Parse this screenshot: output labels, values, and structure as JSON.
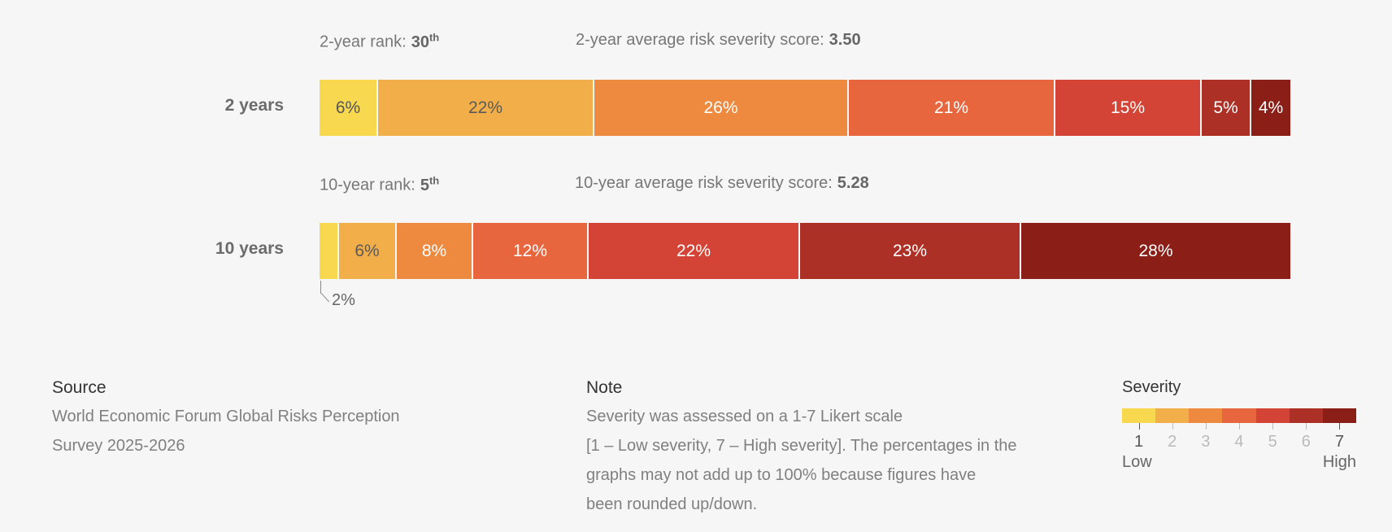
{
  "chart_data": {
    "type": "bar",
    "orientation": "horizontal-stacked",
    "scale_categories": [
      "1",
      "2",
      "3",
      "4",
      "5",
      "6",
      "7"
    ],
    "colors": [
      "#f7d84f",
      "#f2ae48",
      "#ee8a40",
      "#e8663d",
      "#d44436",
      "#ad3027",
      "#8b1e17"
    ],
    "rows": [
      {
        "label": "2 years",
        "rank_label": "2-year rank:",
        "rank_value": "30",
        "rank_suffix": "th",
        "score_label": "2-year average risk severity score:",
        "score_value": "3.50",
        "values": [
          6,
          22,
          26,
          21,
          15,
          5,
          4
        ],
        "value_labels": [
          "6%",
          "22%",
          "26%",
          "21%",
          "15%",
          "5%",
          "4%"
        ]
      },
      {
        "label": "10 years",
        "rank_label": "10-year rank:",
        "rank_value": "5",
        "rank_suffix": "th",
        "score_label": "10-year average risk severity score:",
        "score_value": "5.28",
        "values": [
          2,
          6,
          8,
          12,
          22,
          23,
          28
        ],
        "value_labels": [
          "",
          "6%",
          "8%",
          "12%",
          "22%",
          "23%",
          "28%"
        ],
        "callout": "2%"
      }
    ]
  },
  "footer": {
    "source_title": "Source",
    "source_lines": [
      "World Economic Forum Global Risks Perception",
      "Survey 2025-2026"
    ],
    "note_title": "Note",
    "note_lines": [
      "Severity was assessed on a 1-7 Likert scale",
      "[1 – Low severity, 7 – High severity]. The percentages in the",
      "graphs may not add up to 100% because figures have",
      "been rounded up/down."
    ]
  },
  "legend": {
    "title": "Severity",
    "ticks": [
      "1",
      "2",
      "3",
      "4",
      "5",
      "6",
      "7"
    ],
    "low": "Low",
    "high": "High"
  }
}
